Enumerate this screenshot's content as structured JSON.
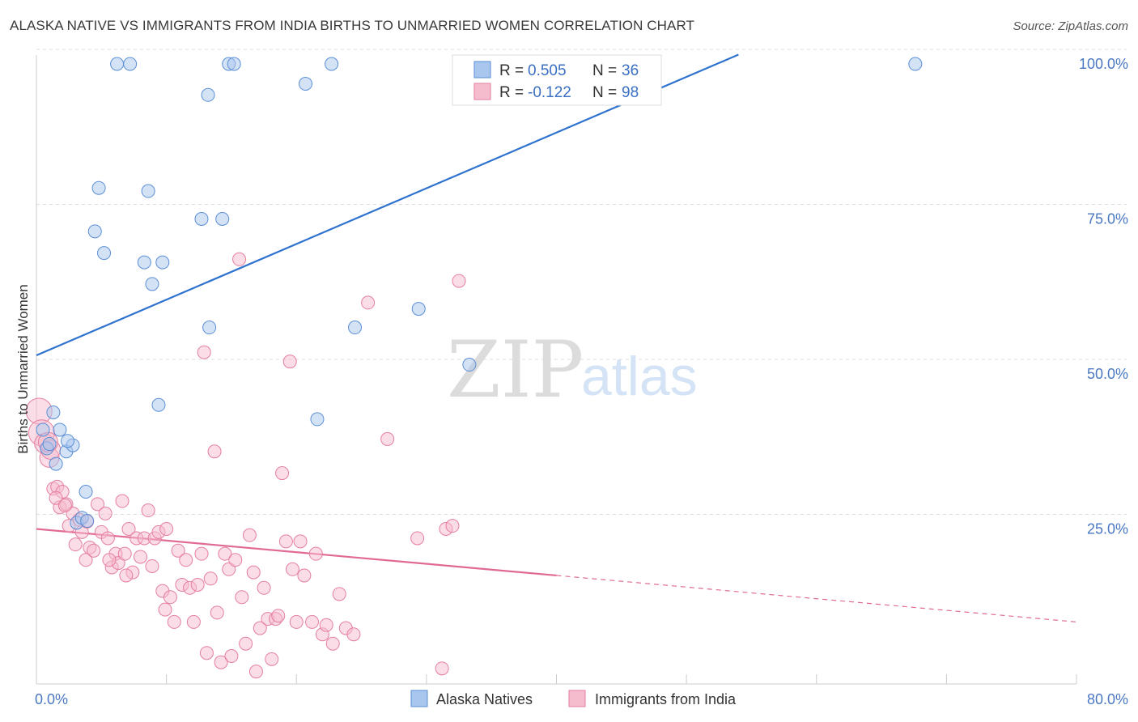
{
  "title": "ALASKA NATIVE VS IMMIGRANTS FROM INDIA BIRTHS TO UNMARRIED WOMEN CORRELATION CHART",
  "source": "Source: ZipAtlas.com",
  "watermark": {
    "zip": "ZIP",
    "atlas": "atlas"
  },
  "colors": {
    "blue": "#5b8fd6",
    "blue_fill": "#a9c6ee",
    "blue_line": "#2f72d0",
    "pink": "#e57fa0",
    "pink_fill": "#f5bccd",
    "pink_line": "#e06a95",
    "axis_text": "#4a78c2",
    "grid": "#dddddd"
  },
  "legend": {
    "rows": [
      {
        "r_label": "R =",
        "r_value": "0.505",
        "n_label": "N =",
        "n_value": "36",
        "series": "blue"
      },
      {
        "r_label": "R =",
        "r_value": "-0.122",
        "n_label": "N =",
        "n_value": "98",
        "series": "pink"
      }
    ]
  },
  "bottom_legend": [
    {
      "label": "Alaska Natives",
      "series": "blue"
    },
    {
      "label": "Immigrants from India",
      "series": "pink"
    }
  ],
  "chart_data": {
    "type": "scatter",
    "title": "ALASKA NATIVE VS IMMIGRANTS FROM INDIA BIRTHS TO UNMARRIED WOMEN CORRELATION CHART",
    "xlabel": "",
    "ylabel": "Births to Unmarried Women",
    "xlim": [
      0,
      80
    ],
    "ylim": [
      0,
      105
    ],
    "x_tick_labels": [
      {
        "value": 0,
        "label": "0.0%"
      },
      {
        "value": 80,
        "label": "80.0%"
      }
    ],
    "y_tick_labels": [
      {
        "value": 25,
        "label": "25.0%"
      },
      {
        "value": 50,
        "label": "50.0%"
      },
      {
        "value": 75,
        "label": "75.0%"
      },
      {
        "value": 100,
        "label": "100.0%"
      }
    ],
    "grid": true,
    "legend_position": "top-center",
    "series": [
      {
        "name": "Alaska Natives",
        "color": "blue",
        "trend": {
          "x": [
            0,
            54
          ],
          "y": [
            53.0,
            101.5
          ],
          "dashed_to": null
        },
        "points": [
          [
            0.5,
            41.0
          ],
          [
            0.8,
            38.0
          ],
          [
            1.0,
            38.7
          ],
          [
            1.5,
            35.5
          ],
          [
            1.8,
            41.0
          ],
          [
            2.3,
            37.5
          ],
          [
            2.8,
            38.5
          ],
          [
            3.1,
            26.0
          ],
          [
            3.8,
            31.0
          ],
          [
            3.5,
            26.8
          ],
          [
            3.9,
            26.3
          ],
          [
            1.3,
            43.8
          ],
          [
            2.4,
            39.2
          ],
          [
            4.5,
            73.0
          ],
          [
            4.8,
            80.0
          ],
          [
            5.2,
            69.5
          ],
          [
            6.2,
            112.0
          ],
          [
            7.2,
            112.0
          ],
          [
            8.3,
            68.0
          ],
          [
            8.6,
            79.5
          ],
          [
            8.9,
            64.5
          ],
          [
            9.4,
            45.0
          ],
          [
            9.7,
            68.0
          ],
          [
            12.7,
            75.0
          ],
          [
            13.2,
            95.0
          ],
          [
            13.3,
            57.5
          ],
          [
            14.3,
            75.0
          ],
          [
            14.8,
            112.0
          ],
          [
            15.2,
            112.0
          ],
          [
            20.7,
            96.8
          ],
          [
            21.6,
            42.7
          ],
          [
            22.7,
            112.0
          ],
          [
            24.5,
            57.5
          ],
          [
            29.4,
            60.5
          ],
          [
            33.3,
            51.5
          ],
          [
            67.6,
            112.0
          ]
        ]
      },
      {
        "name": "Immigrants from India",
        "color": "pink",
        "trend": {
          "x": [
            0,
            40
          ],
          "y": [
            25.0,
            17.5
          ],
          "dashed_to": [
            80,
            10.0
          ]
        },
        "points": [
          [
            0.2,
            44.0
          ],
          [
            0.4,
            40.5
          ],
          [
            0.6,
            38.8
          ],
          [
            1.0,
            36.5
          ],
          [
            1.1,
            37.8
          ],
          [
            1.3,
            31.5
          ],
          [
            1.6,
            31.8
          ],
          [
            1.8,
            28.5
          ],
          [
            2.0,
            31.0
          ],
          [
            2.3,
            29.0
          ],
          [
            2.5,
            25.5
          ],
          [
            2.8,
            27.5
          ],
          [
            3.0,
            22.5
          ],
          [
            3.3,
            26.5
          ],
          [
            3.5,
            24.5
          ],
          [
            3.8,
            20.0
          ],
          [
            4.1,
            22.0
          ],
          [
            4.4,
            21.5
          ],
          [
            4.7,
            29.0
          ],
          [
            5.0,
            24.5
          ],
          [
            5.3,
            27.5
          ],
          [
            5.5,
            23.5
          ],
          [
            5.8,
            18.8
          ],
          [
            6.1,
            21.0
          ],
          [
            6.3,
            19.5
          ],
          [
            6.6,
            29.5
          ],
          [
            6.8,
            21.0
          ],
          [
            7.1,
            25.0
          ],
          [
            7.4,
            18.0
          ],
          [
            7.7,
            23.5
          ],
          [
            8.0,
            20.5
          ],
          [
            8.3,
            23.5
          ],
          [
            8.6,
            28.0
          ],
          [
            8.9,
            19.0
          ],
          [
            9.1,
            23.5
          ],
          [
            9.4,
            24.5
          ],
          [
            9.7,
            15.0
          ],
          [
            10.0,
            25.0
          ],
          [
            10.3,
            14.0
          ],
          [
            10.6,
            10.0
          ],
          [
            10.9,
            21.5
          ],
          [
            11.2,
            16.0
          ],
          [
            11.5,
            20.0
          ],
          [
            11.8,
            15.5
          ],
          [
            12.1,
            10.0
          ],
          [
            12.4,
            16.0
          ],
          [
            12.7,
            21.0
          ],
          [
            12.9,
            53.5
          ],
          [
            13.1,
            5.0
          ],
          [
            13.4,
            17.0
          ],
          [
            13.7,
            37.5
          ],
          [
            13.9,
            11.5
          ],
          [
            14.2,
            3.5
          ],
          [
            14.5,
            21.0
          ],
          [
            14.8,
            18.5
          ],
          [
            15.0,
            4.5
          ],
          [
            15.3,
            20.0
          ],
          [
            15.6,
            68.5
          ],
          [
            15.8,
            14.0
          ],
          [
            16.1,
            6.5
          ],
          [
            16.4,
            24.0
          ],
          [
            16.7,
            18.0
          ],
          [
            16.9,
            2.0
          ],
          [
            17.2,
            9.0
          ],
          [
            17.5,
            15.5
          ],
          [
            17.8,
            10.5
          ],
          [
            18.1,
            4.0
          ],
          [
            18.4,
            10.5
          ],
          [
            18.6,
            11.0
          ],
          [
            18.9,
            34.0
          ],
          [
            19.2,
            23.0
          ],
          [
            19.5,
            52.0
          ],
          [
            19.7,
            18.5
          ],
          [
            20.0,
            10.0
          ],
          [
            20.3,
            23.0
          ],
          [
            20.6,
            17.5
          ],
          [
            21.2,
            10.0
          ],
          [
            21.5,
            21.0
          ],
          [
            22.0,
            8.0
          ],
          [
            22.3,
            9.5
          ],
          [
            22.8,
            6.5
          ],
          [
            23.3,
            14.5
          ],
          [
            23.8,
            9.0
          ],
          [
            24.4,
            8.0
          ],
          [
            25.5,
            61.5
          ],
          [
            27.0,
            39.5
          ],
          [
            29.3,
            23.5
          ],
          [
            31.2,
            2.5
          ],
          [
            31.5,
            25.0
          ],
          [
            32.0,
            25.5
          ],
          [
            32.5,
            65.0
          ],
          [
            1.5,
            30.0
          ],
          [
            2.2,
            28.8
          ],
          [
            0.9,
            39.0
          ],
          [
            3.9,
            26.2
          ],
          [
            5.6,
            20.0
          ],
          [
            6.9,
            17.5
          ],
          [
            9.9,
            12.0
          ]
        ]
      }
    ]
  }
}
